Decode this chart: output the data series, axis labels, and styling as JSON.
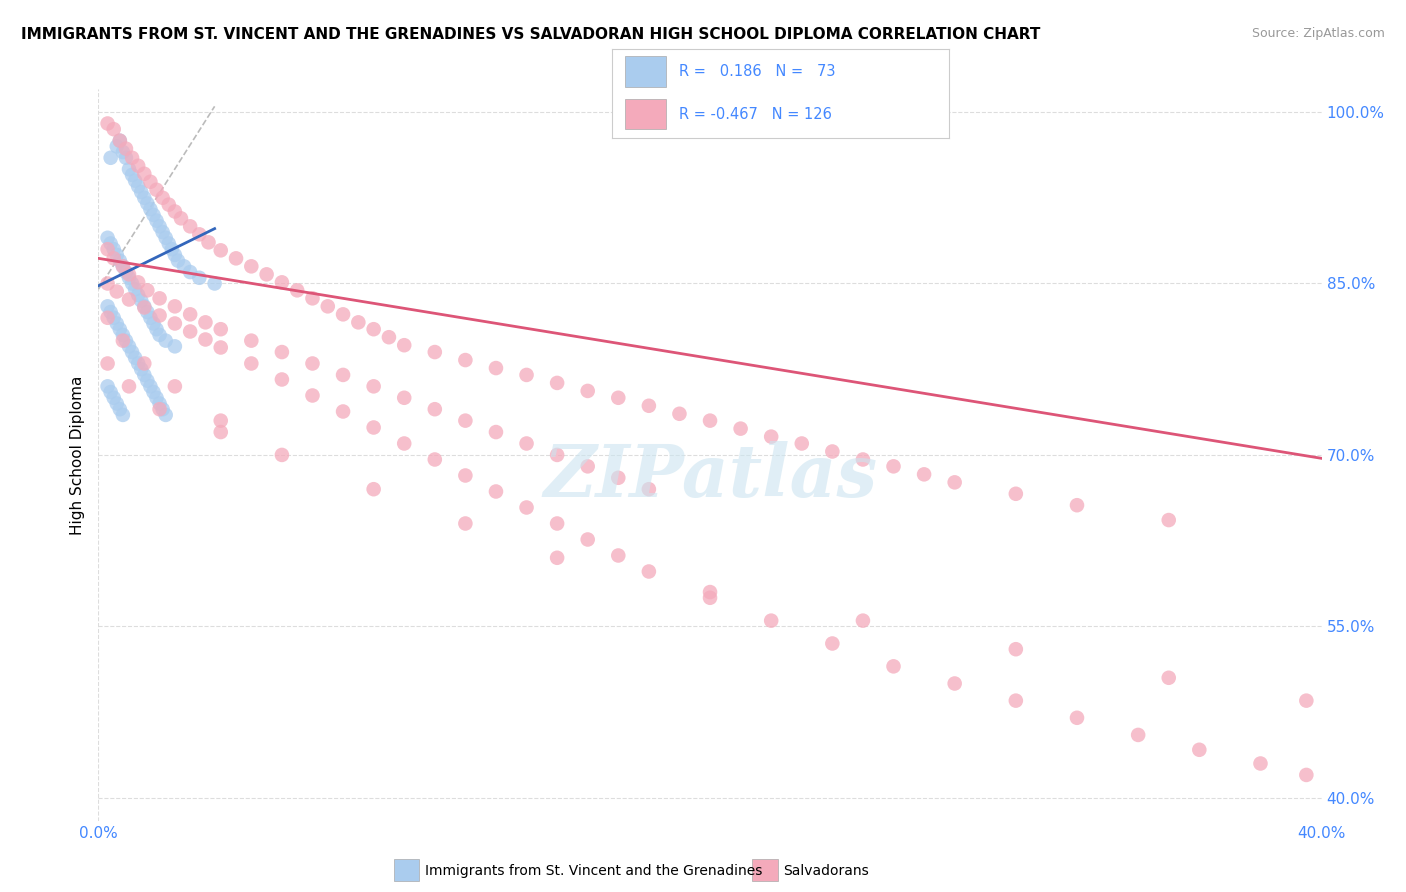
{
  "title": "IMMIGRANTS FROM ST. VINCENT AND THE GRENADINES VS SALVADORAN HIGH SCHOOL DIPLOMA CORRELATION CHART",
  "source": "Source: ZipAtlas.com",
  "ylabel": "High School Diploma",
  "blue_R": 0.186,
  "blue_N": 73,
  "pink_R": -0.467,
  "pink_N": 126,
  "blue_color": "#aaccee",
  "pink_color": "#f4aabb",
  "blue_line_color": "#3366bb",
  "pink_line_color": "#dd5577",
  "dashed_line_color": "#bbbbbb",
  "watermark_text": "ZIPatlas",
  "blue_scatter_x": [
    0.004,
    0.006,
    0.007,
    0.008,
    0.009,
    0.01,
    0.011,
    0.012,
    0.013,
    0.014,
    0.015,
    0.016,
    0.017,
    0.018,
    0.019,
    0.02,
    0.021,
    0.022,
    0.023,
    0.024,
    0.025,
    0.026,
    0.028,
    0.03,
    0.033,
    0.038,
    0.003,
    0.004,
    0.005,
    0.006,
    0.007,
    0.008,
    0.009,
    0.01,
    0.011,
    0.012,
    0.013,
    0.014,
    0.015,
    0.016,
    0.017,
    0.018,
    0.019,
    0.02,
    0.022,
    0.025,
    0.003,
    0.004,
    0.005,
    0.006,
    0.007,
    0.008,
    0.009,
    0.01,
    0.011,
    0.012,
    0.013,
    0.014,
    0.015,
    0.016,
    0.017,
    0.018,
    0.019,
    0.02,
    0.021,
    0.022,
    0.003,
    0.004,
    0.005,
    0.006,
    0.007,
    0.008
  ],
  "blue_scatter_y": [
    0.96,
    0.97,
    0.975,
    0.965,
    0.96,
    0.95,
    0.945,
    0.94,
    0.935,
    0.93,
    0.925,
    0.92,
    0.915,
    0.91,
    0.905,
    0.9,
    0.895,
    0.89,
    0.885,
    0.88,
    0.875,
    0.87,
    0.865,
    0.86,
    0.855,
    0.85,
    0.89,
    0.885,
    0.88,
    0.875,
    0.87,
    0.865,
    0.86,
    0.855,
    0.85,
    0.845,
    0.84,
    0.835,
    0.83,
    0.825,
    0.82,
    0.815,
    0.81,
    0.805,
    0.8,
    0.795,
    0.83,
    0.825,
    0.82,
    0.815,
    0.81,
    0.805,
    0.8,
    0.795,
    0.79,
    0.785,
    0.78,
    0.775,
    0.77,
    0.765,
    0.76,
    0.755,
    0.75,
    0.745,
    0.74,
    0.735,
    0.76,
    0.755,
    0.75,
    0.745,
    0.74,
    0.735
  ],
  "pink_scatter_x": [
    0.003,
    0.005,
    0.007,
    0.009,
    0.011,
    0.013,
    0.015,
    0.017,
    0.019,
    0.021,
    0.023,
    0.025,
    0.027,
    0.03,
    0.033,
    0.036,
    0.04,
    0.045,
    0.05,
    0.055,
    0.06,
    0.065,
    0.07,
    0.075,
    0.08,
    0.085,
    0.09,
    0.095,
    0.1,
    0.11,
    0.12,
    0.13,
    0.14,
    0.15,
    0.16,
    0.17,
    0.18,
    0.19,
    0.2,
    0.21,
    0.22,
    0.23,
    0.24,
    0.25,
    0.26,
    0.27,
    0.28,
    0.3,
    0.32,
    0.35,
    0.003,
    0.005,
    0.008,
    0.01,
    0.013,
    0.016,
    0.02,
    0.025,
    0.03,
    0.035,
    0.04,
    0.05,
    0.06,
    0.07,
    0.08,
    0.09,
    0.1,
    0.11,
    0.12,
    0.13,
    0.14,
    0.15,
    0.16,
    0.17,
    0.18,
    0.003,
    0.006,
    0.01,
    0.015,
    0.02,
    0.025,
    0.03,
    0.035,
    0.04,
    0.05,
    0.06,
    0.07,
    0.08,
    0.09,
    0.1,
    0.11,
    0.12,
    0.13,
    0.14,
    0.15,
    0.16,
    0.17,
    0.18,
    0.2,
    0.22,
    0.24,
    0.26,
    0.28,
    0.3,
    0.32,
    0.34,
    0.36,
    0.38,
    0.395,
    0.003,
    0.008,
    0.015,
    0.025,
    0.04,
    0.06,
    0.09,
    0.12,
    0.15,
    0.2,
    0.25,
    0.3,
    0.35,
    0.395,
    0.003,
    0.01,
    0.02,
    0.04
  ],
  "pink_scatter_y": [
    0.99,
    0.985,
    0.975,
    0.968,
    0.96,
    0.953,
    0.946,
    0.939,
    0.932,
    0.925,
    0.919,
    0.913,
    0.907,
    0.9,
    0.893,
    0.886,
    0.879,
    0.872,
    0.865,
    0.858,
    0.851,
    0.844,
    0.837,
    0.83,
    0.823,
    0.816,
    0.81,
    0.803,
    0.796,
    0.79,
    0.783,
    0.776,
    0.77,
    0.763,
    0.756,
    0.75,
    0.743,
    0.736,
    0.73,
    0.723,
    0.716,
    0.71,
    0.703,
    0.696,
    0.69,
    0.683,
    0.676,
    0.666,
    0.656,
    0.643,
    0.88,
    0.872,
    0.865,
    0.858,
    0.851,
    0.844,
    0.837,
    0.83,
    0.823,
    0.816,
    0.81,
    0.8,
    0.79,
    0.78,
    0.77,
    0.76,
    0.75,
    0.74,
    0.73,
    0.72,
    0.71,
    0.7,
    0.69,
    0.68,
    0.67,
    0.85,
    0.843,
    0.836,
    0.829,
    0.822,
    0.815,
    0.808,
    0.801,
    0.794,
    0.78,
    0.766,
    0.752,
    0.738,
    0.724,
    0.71,
    0.696,
    0.682,
    0.668,
    0.654,
    0.64,
    0.626,
    0.612,
    0.598,
    0.575,
    0.555,
    0.535,
    0.515,
    0.5,
    0.485,
    0.47,
    0.455,
    0.442,
    0.43,
    0.42,
    0.82,
    0.8,
    0.78,
    0.76,
    0.73,
    0.7,
    0.67,
    0.64,
    0.61,
    0.58,
    0.555,
    0.53,
    0.505,
    0.485,
    0.78,
    0.76,
    0.74,
    0.72
  ],
  "xlim": [
    0.0,
    0.4
  ],
  "ylim": [
    0.38,
    1.02
  ],
  "blue_trendline_x": [
    0.0,
    0.038
  ],
  "blue_trendline_y": [
    0.848,
    0.898
  ],
  "pink_trendline_x": [
    0.0,
    0.4
  ],
  "pink_trendline_y": [
    0.872,
    0.697
  ],
  "dashed_line_x": [
    0.0,
    0.038
  ],
  "dashed_line_y": [
    0.845,
    1.005
  ],
  "ytick_positions": [
    1.0,
    0.85,
    0.7,
    0.55,
    0.4
  ],
  "ytick_labels": [
    "100.0%",
    "85.0%",
    "70.0%",
    "55.0%",
    "40.0%"
  ],
  "xtick_positions": [
    0.0,
    0.4
  ],
  "xtick_labels": [
    "0.0%",
    "40.0%"
  ],
  "right_ytick_color": "#4488ff",
  "xtick_color": "#4488ff",
  "grid_color": "#dddddd",
  "title_fontsize": 11,
  "source_text_color": "#999999"
}
